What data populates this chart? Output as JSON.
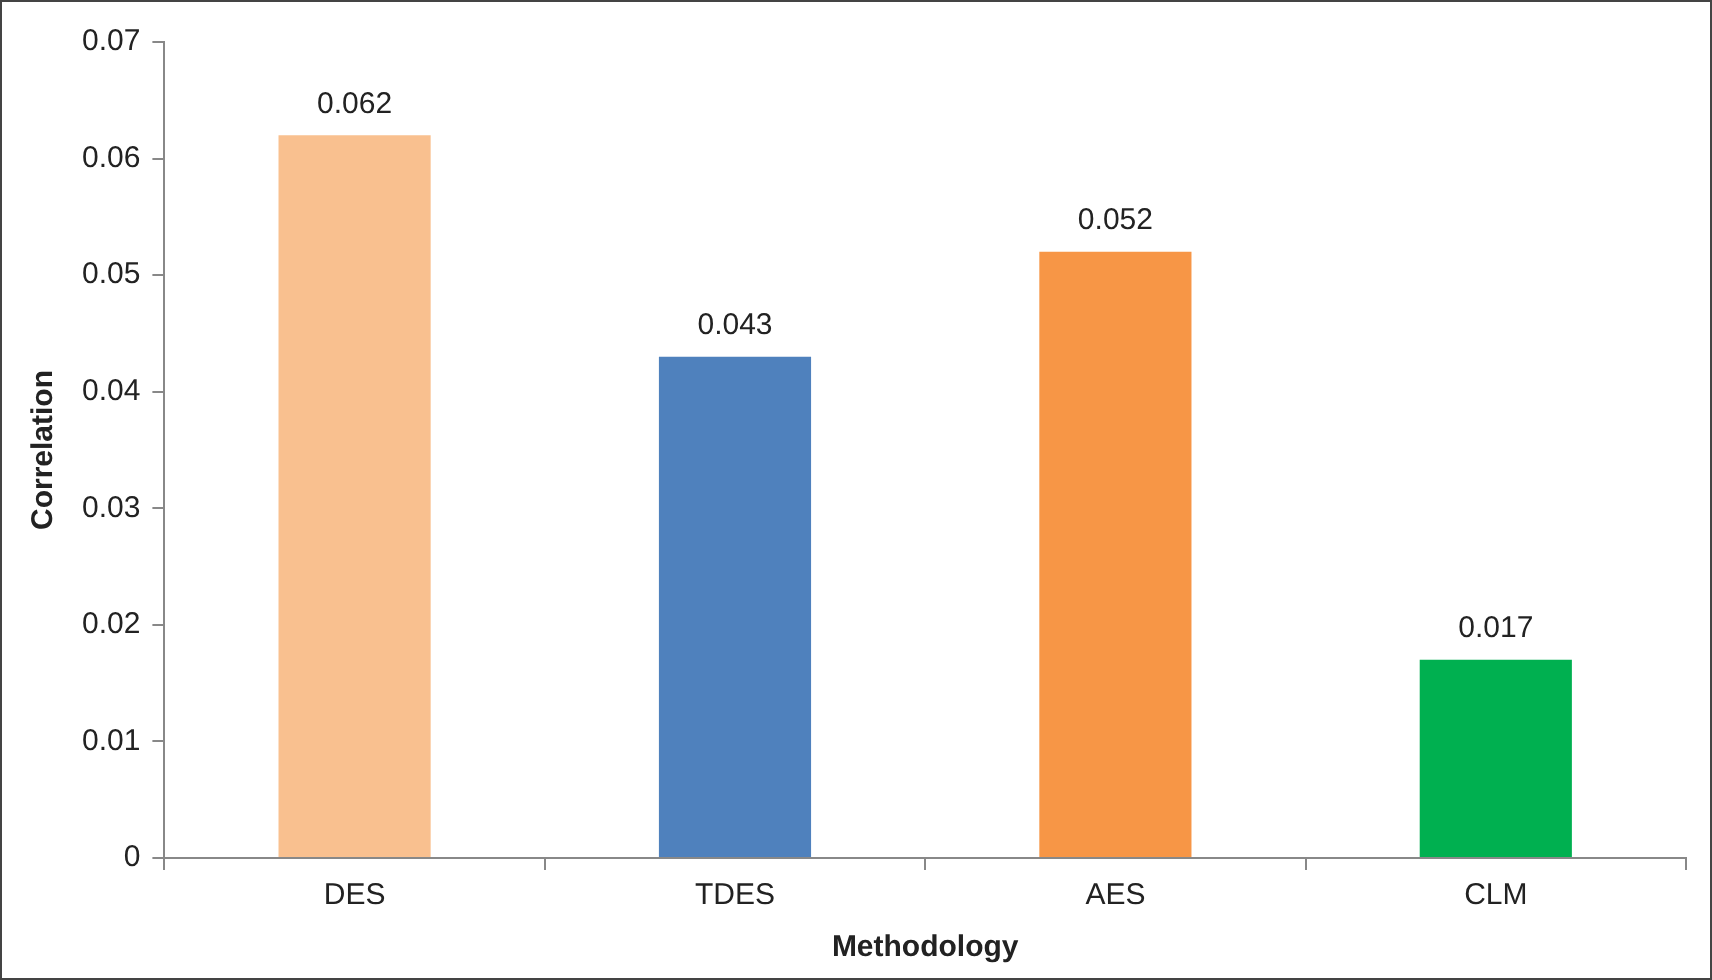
{
  "chart_data": {
    "type": "bar",
    "xlabel": "Methodology",
    "ylabel": "Correlation",
    "categories": [
      "DES",
      "TDES",
      "AES",
      "CLM"
    ],
    "values": [
      0.062,
      0.043,
      0.052,
      0.017
    ],
    "colors": [
      "#f9c08f",
      "#4f81bd",
      "#f79646",
      "#00b050"
    ],
    "ylim": [
      0,
      0.07
    ],
    "yticks": [
      0,
      {
        "value": 0.01,
        "label": "0.01"
      },
      {
        "value": 0.02,
        "label": "0.02"
      },
      {
        "value": 0.03,
        "label": "0.03"
      },
      {
        "value": 0.04,
        "label": "0.04"
      },
      {
        "value": 0.05,
        "label": "0.05"
      },
      {
        "value": 0.06,
        "label": "0.06"
      },
      {
        "value": 0.07,
        "label": "0.07"
      }
    ],
    "grid": false,
    "legend": false,
    "data_labels": true
  }
}
